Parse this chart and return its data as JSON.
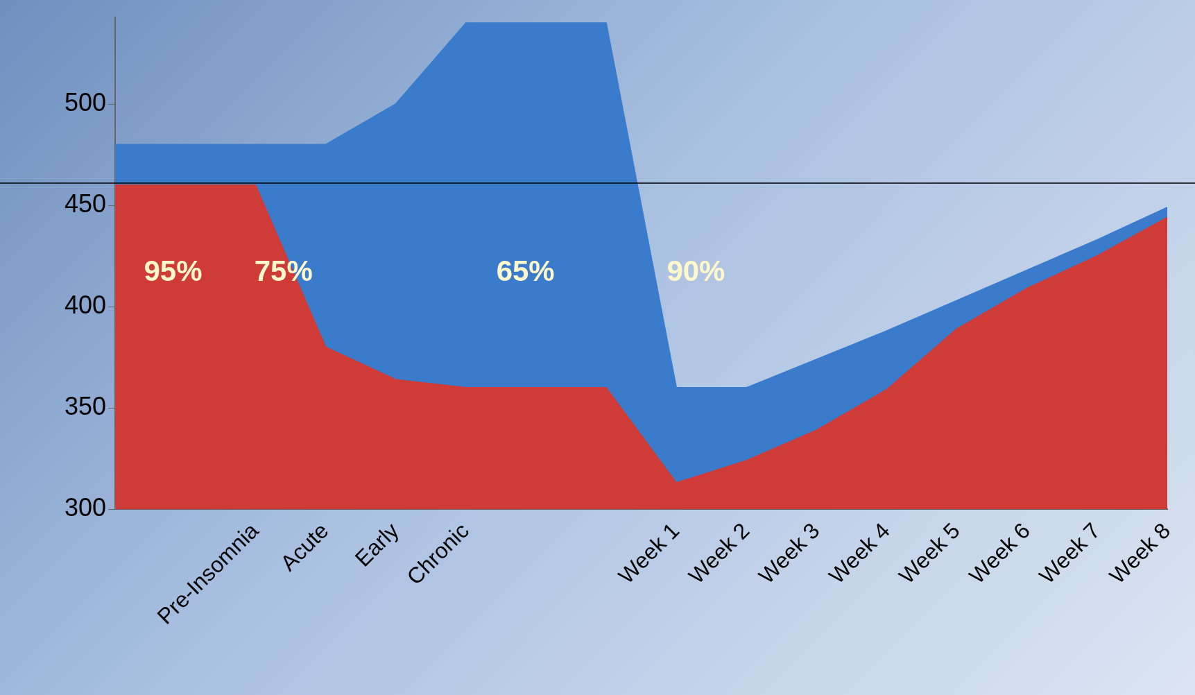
{
  "chart_data": {
    "type": "area",
    "categories": [
      null,
      null,
      "Pre-Insomnia",
      "Acute",
      "Early",
      "Chronic",
      null,
      null,
      "Week 1",
      "Week 2",
      "Week 3",
      "Week 4",
      "Week 5",
      "Week 6",
      "Week 7",
      "Week 8"
    ],
    "series": [
      {
        "color": "#3b7bcc",
        "values": [
          480,
          480,
          480,
          480,
          500,
          540,
          540,
          540,
          360,
          360,
          374,
          388,
          403,
          418,
          433,
          449
        ]
      },
      {
        "color": "#cf3b36",
        "values": [
          460,
          460,
          460,
          380,
          364,
          360,
          360,
          360,
          313,
          324,
          339,
          359,
          389,
          409,
          425,
          444
        ]
      }
    ],
    "ylim": [
      300,
      543
    ],
    "yticks": [
      300,
      350,
      400,
      450,
      500
    ],
    "grid": false,
    "legend": false,
    "ref_lines": [
      {
        "axis": "y",
        "value": 461,
        "color": "#000000"
      }
    ],
    "annotations": [
      "95%",
      "75%",
      "65%",
      "90%"
    ]
  }
}
